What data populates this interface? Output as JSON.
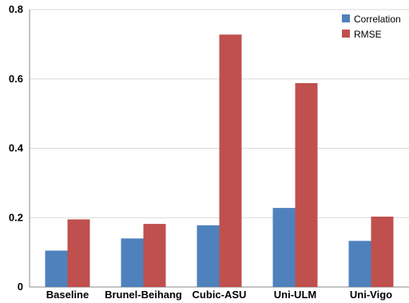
{
  "chart_data": {
    "type": "bar",
    "categories": [
      "Baseline",
      "Brunel-Beihang",
      "Cubic-ASU",
      "Uni-ULM",
      "Uni-Vigo"
    ],
    "series": [
      {
        "name": "Correlation",
        "values": [
          0.105,
          0.14,
          0.178,
          0.228,
          0.133
        ],
        "color": "#4f81bd"
      },
      {
        "name": "RMSE",
        "values": [
          0.195,
          0.182,
          0.728,
          0.588,
          0.203
        ],
        "color": "#c0504d"
      }
    ],
    "yticks": [
      "0",
      "0.2",
      "0.4",
      "0.6",
      "0.8"
    ],
    "ylim": [
      0,
      0.8
    ],
    "grid": true,
    "legend_position": "top-right"
  }
}
